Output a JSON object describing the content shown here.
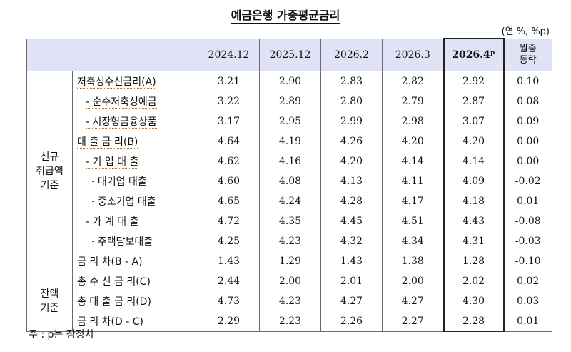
{
  "title": "예금은행 가중평균금리",
  "unit": "(연 %, %p)",
  "columns": [
    "2024.12",
    "2025.12",
    "2026.2",
    "2026.3",
    "2026.4ᵖ",
    "월중\n등락"
  ],
  "groups": [
    {
      "label": "신규\n취급액\n기준",
      "rows": [
        {
          "label": "저축성수신금리(A)",
          "values": [
            "3.21",
            "2.90",
            "2.83",
            "2.82",
            "2.92",
            "0.10"
          ]
        },
        {
          "label": "- 순수저축성예금",
          "values": [
            "3.22",
            "2.89",
            "2.80",
            "2.79",
            "2.87",
            "0.08"
          ]
        },
        {
          "label": "- 시장형금융상품",
          "values": [
            "3.17",
            "2.95",
            "2.99",
            "2.98",
            "3.07",
            "0.09"
          ]
        },
        {
          "label": "대 출 금 리(B)",
          "values": [
            "4.64",
            "4.19",
            "4.26",
            "4.20",
            "4.20",
            "0.00"
          ]
        },
        {
          "label": "- 기 업 대 출",
          "values": [
            "4.62",
            "4.16",
            "4.20",
            "4.14",
            "4.14",
            "0.00"
          ]
        },
        {
          "label": "· 대기업 대출",
          "values": [
            "4.60",
            "4.08",
            "4.13",
            "4.11",
            "4.09",
            "-0.02"
          ]
        },
        {
          "label": "· 중소기업 대출",
          "values": [
            "4.65",
            "4.24",
            "4.28",
            "4.17",
            "4.18",
            "0.01"
          ]
        },
        {
          "label": "- 가 계 대 출",
          "values": [
            "4.72",
            "4.35",
            "4.45",
            "4.51",
            "4.43",
            "-0.08"
          ]
        },
        {
          "label": "· 주택담보대출",
          "values": [
            "4.25",
            "4.23",
            "4.32",
            "4.34",
            "4.31",
            "-0.03"
          ]
        },
        {
          "label": "금 리 차(B - A)",
          "values": [
            "1.43",
            "1.29",
            "1.43",
            "1.38",
            "1.28",
            "-0.10"
          ]
        }
      ]
    },
    {
      "label": "잔액\n기준",
      "rows": [
        {
          "label": "총 수 신 금 리(C)",
          "values": [
            "2.44",
            "2.00",
            "2.01",
            "2.00",
            "2.02",
            "0.02"
          ]
        },
        {
          "label": "총 대 출 금 리(D)",
          "values": [
            "4.73",
            "4.23",
            "4.27",
            "4.27",
            "4.30",
            "0.03"
          ]
        },
        {
          "label": "금 리 차(D - C)",
          "values": [
            "2.29",
            "2.23",
            "2.26",
            "2.27",
            "2.28",
            "0.01"
          ]
        }
      ]
    }
  ],
  "note": "주 : p는 잠정치"
}
